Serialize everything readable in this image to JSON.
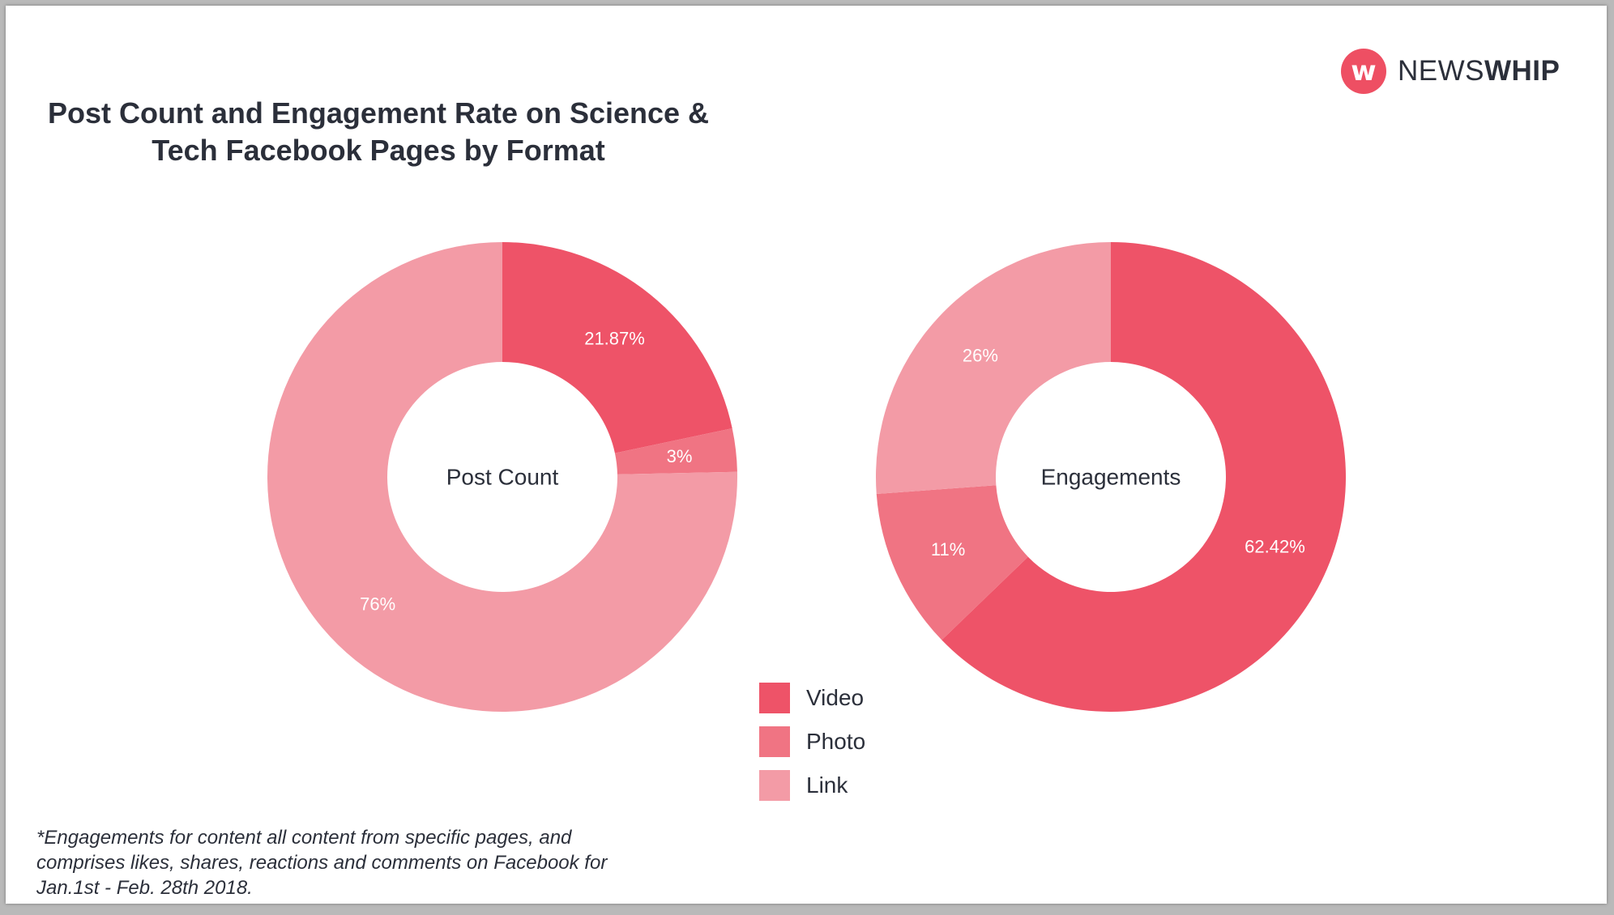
{
  "title": "Post Count and Engagement Rate on Science & Tech Facebook Pages by Format",
  "logo": {
    "mark": "w",
    "text_light": "NEWS",
    "text_bold": "WHIP",
    "color": "#ee4f63"
  },
  "chart_data": [
    {
      "type": "pie",
      "center_label": "Post Count",
      "categories": [
        "Video",
        "Photo",
        "Link"
      ],
      "values": [
        21.87,
        3,
        76
      ],
      "labels": [
        "21.87%",
        "3%",
        "76%"
      ],
      "colors": [
        "#ee5368",
        "#f07483",
        "#f39ba6"
      ]
    },
    {
      "type": "pie",
      "center_label": "Engagements",
      "categories": [
        "Video",
        "Photo",
        "Link"
      ],
      "values": [
        62.42,
        11,
        26
      ],
      "labels": [
        "62.42%",
        "11%",
        "26%"
      ],
      "colors": [
        "#ee5368",
        "#f07483",
        "#f39ba6"
      ]
    }
  ],
  "legend": [
    {
      "label": "Video",
      "color": "#ee5368"
    },
    {
      "label": "Photo",
      "color": "#f07483"
    },
    {
      "label": "Link",
      "color": "#f39ba6"
    }
  ],
  "footnote": "*Engagements for content all content from specific pages, and comprises likes, shares, reactions and comments on Facebook for Jan.1st - Feb. 28th 2018."
}
